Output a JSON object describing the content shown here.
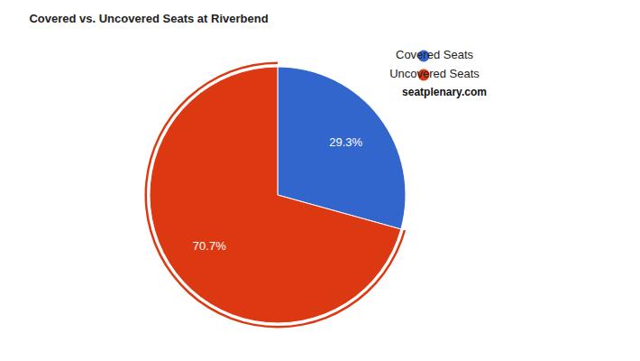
{
  "chart_data": {
    "type": "pie",
    "title": "Covered vs. Uncovered Seats at Riverbend",
    "categories": [
      "Covered Seats",
      "Uncovered Seats"
    ],
    "values": [
      29.3,
      70.7
    ],
    "value_labels": [
      "29.3%",
      "70.7%"
    ],
    "colors": [
      "#3366cc",
      "#dc3912"
    ],
    "data_labels": true,
    "legend": "top-right",
    "annotations": [
      "seatplenary.com"
    ]
  }
}
